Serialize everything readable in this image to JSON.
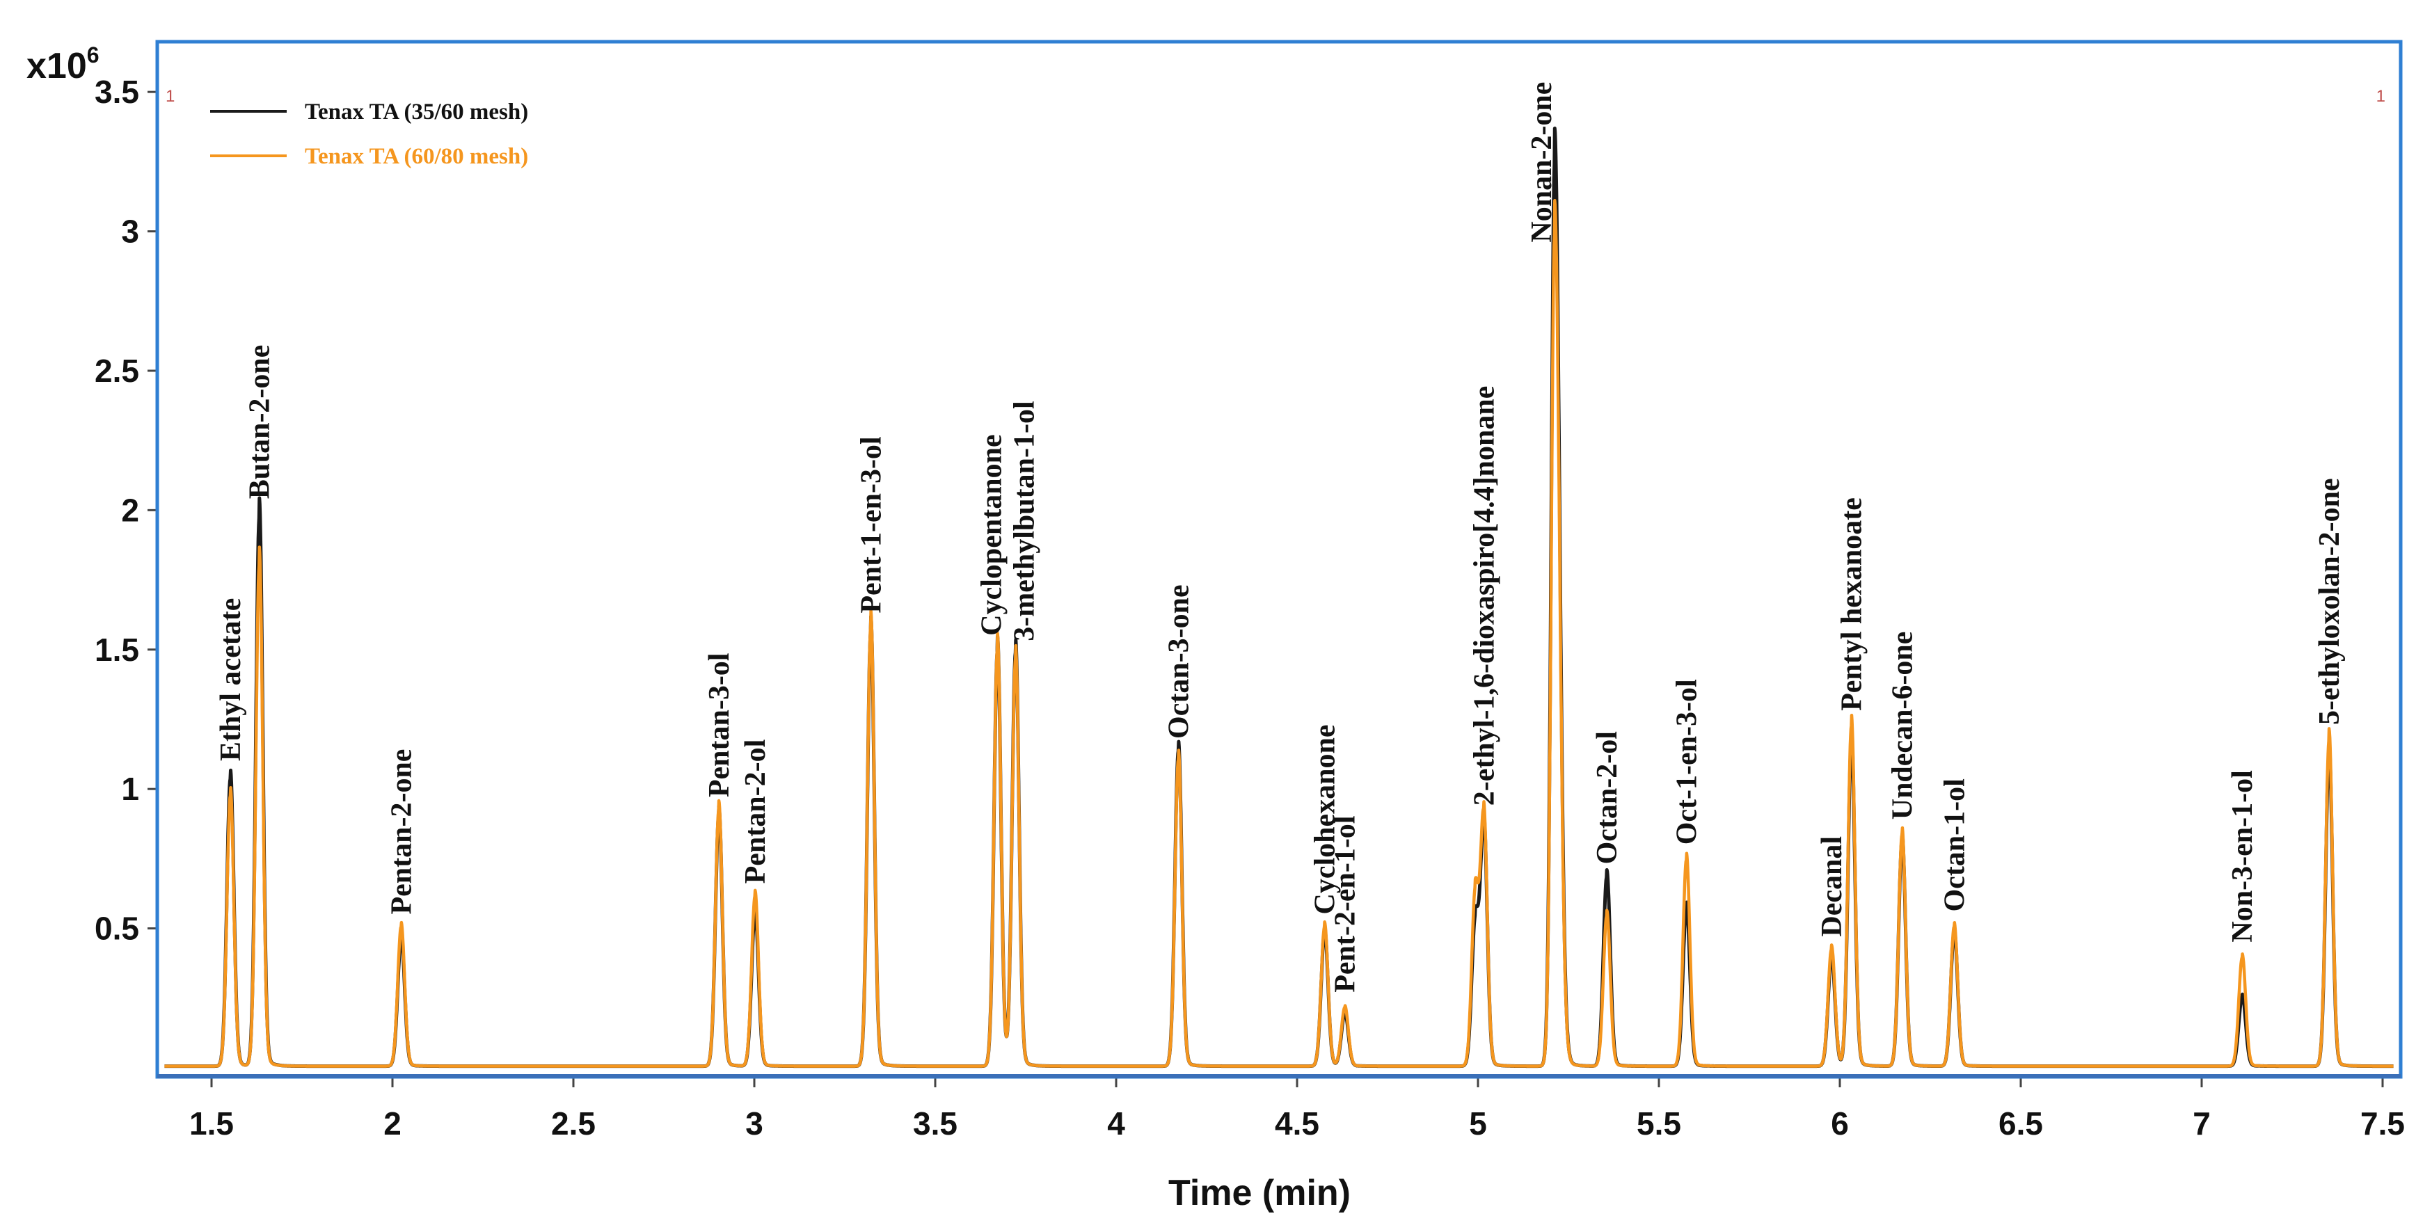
{
  "chart_data": {
    "type": "line",
    "title": "",
    "xlabel": "Time (min)",
    "ylabel": "",
    "y_scale_label": "x10",
    "y_scale_exponent": "6",
    "xlim": [
      1.35,
      7.55
    ],
    "ylim": [
      -0.03,
      3.68
    ],
    "x_ticks": [
      {
        "value": 1.5,
        "label": "1.5"
      },
      {
        "value": 2,
        "label": "2"
      },
      {
        "value": 2.5,
        "label": "2.5"
      },
      {
        "value": 3,
        "label": "3"
      },
      {
        "value": 3.5,
        "label": "3.5"
      },
      {
        "value": 4,
        "label": "4"
      },
      {
        "value": 4.5,
        "label": "4.5"
      },
      {
        "value": 5,
        "label": "5"
      },
      {
        "value": 5.5,
        "label": "5.5"
      },
      {
        "value": 6,
        "label": "6"
      },
      {
        "value": 6.5,
        "label": "6.5"
      },
      {
        "value": 7,
        "label": "7"
      },
      {
        "value": 7.5,
        "label": "7.5"
      }
    ],
    "y_ticks": [
      {
        "value": 0.5,
        "label": "0.5"
      },
      {
        "value": 1,
        "label": "1"
      },
      {
        "value": 1.5,
        "label": "1.5"
      },
      {
        "value": 2,
        "label": "2"
      },
      {
        "value": 2.5,
        "label": "2.5"
      },
      {
        "value": 3,
        "label": "3"
      },
      {
        "value": 3.5,
        "label": "3.5"
      }
    ],
    "corner_marks": [
      "1",
      "1"
    ],
    "series": [
      {
        "name": "Tenax TA (35/60 mesh)",
        "color": "#1a1a1a",
        "peaks": [
          {
            "t": 1.552,
            "h": 1.03
          },
          {
            "t": 1.632,
            "h": 1.97
          },
          {
            "t": 2.024,
            "h": 0.46
          },
          {
            "t": 2.902,
            "h": 0.9
          },
          {
            "t": 3.002,
            "h": 0.55
          },
          {
            "t": 3.322,
            "h": 1.56
          },
          {
            "t": 3.672,
            "h": 1.49
          },
          {
            "t": 3.722,
            "h": 1.48
          },
          {
            "t": 4.172,
            "h": 1.13
          },
          {
            "t": 4.576,
            "h": 0.48
          },
          {
            "t": 4.632,
            "h": 0.19
          },
          {
            "t": 4.992,
            "h": 0.51
          },
          {
            "t": 5.016,
            "h": 0.86
          },
          {
            "t": 5.212,
            "h": 3.25
          },
          {
            "t": 5.356,
            "h": 0.68
          },
          {
            "t": 5.576,
            "h": 0.57
          },
          {
            "t": 5.977,
            "h": 0.39
          },
          {
            "t": 6.032,
            "h": 1.16
          },
          {
            "t": 6.172,
            "h": 0.81
          },
          {
            "t": 6.316,
            "h": 0.48
          },
          {
            "t": 7.112,
            "h": 0.25
          },
          {
            "t": 7.352,
            "h": 1.12
          }
        ]
      },
      {
        "name": "Tenax TA (60/80 mesh)",
        "color": "#f5961e",
        "peaks": [
          {
            "t": 1.552,
            "h": 0.97
          },
          {
            "t": 1.632,
            "h": 1.8
          },
          {
            "t": 2.024,
            "h": 0.5
          },
          {
            "t": 2.902,
            "h": 0.92
          },
          {
            "t": 3.002,
            "h": 0.61
          },
          {
            "t": 3.322,
            "h": 1.58
          },
          {
            "t": 3.672,
            "h": 1.5
          },
          {
            "t": 3.722,
            "h": 1.46
          },
          {
            "t": 4.172,
            "h": 1.1
          },
          {
            "t": 4.576,
            "h": 0.5
          },
          {
            "t": 4.632,
            "h": 0.21
          },
          {
            "t": 4.992,
            "h": 0.61
          },
          {
            "t": 5.016,
            "h": 0.89
          },
          {
            "t": 5.212,
            "h": 3.0
          },
          {
            "t": 5.356,
            "h": 0.54
          },
          {
            "t": 5.576,
            "h": 0.74
          },
          {
            "t": 5.977,
            "h": 0.42
          },
          {
            "t": 6.032,
            "h": 1.22
          },
          {
            "t": 6.172,
            "h": 0.83
          },
          {
            "t": 6.316,
            "h": 0.5
          },
          {
            "t": 7.112,
            "h": 0.39
          },
          {
            "t": 7.352,
            "h": 1.17
          }
        ]
      }
    ],
    "peak_labels": [
      {
        "text": "Ethyl acetate",
        "t": 1.552,
        "y": 1.1
      },
      {
        "text": "Butan-2-one",
        "t": 1.632,
        "y": 2.04
      },
      {
        "text": "Pentan-2-one",
        "t": 2.024,
        "y": 0.55
      },
      {
        "text": "Pentan-3-ol",
        "t": 2.902,
        "y": 0.97
      },
      {
        "text": "Pentan-2-ol",
        "t": 3.002,
        "y": 0.66
      },
      {
        "text": "Pent-1-en-3-ol",
        "t": 3.322,
        "y": 1.63
      },
      {
        "text": "Cyclopentanone",
        "t": 3.655,
        "y": 1.55
      },
      {
        "text": "3-methylbutan-1-ol",
        "t": 3.745,
        "y": 1.53
      },
      {
        "text": "Octan-3-one",
        "t": 4.172,
        "y": 1.18
      },
      {
        "text": "Cyclohexanone",
        "t": 4.576,
        "y": 0.55
      },
      {
        "text": "Pent-2-en-1-ol",
        "t": 4.632,
        "y": 0.27
      },
      {
        "text": "2-ethyl-1,6-dioxaspiro[4.4]nonane",
        "t": 5.016,
        "y": 0.94
      },
      {
        "text": "Nonan-2-one",
        "t": 5.175,
        "y": 2.96
      },
      {
        "text": "Octan-2-ol",
        "t": 5.356,
        "y": 0.73
      },
      {
        "text": "Oct-1-en-3-ol",
        "t": 5.576,
        "y": 0.8
      },
      {
        "text": "Decanal",
        "t": 5.977,
        "y": 0.47
      },
      {
        "text": "Pentyl hexanoate",
        "t": 6.032,
        "y": 1.28
      },
      {
        "text": "Undecan-6-one",
        "t": 6.172,
        "y": 0.89
      },
      {
        "text": "Octan-1-ol",
        "t": 6.316,
        "y": 0.56
      },
      {
        "text": "Non-3-en-1-ol",
        "t": 7.112,
        "y": 0.45
      },
      {
        "text": "5-ethyloxolan-2-one",
        "t": 7.352,
        "y": 1.23
      }
    ]
  }
}
